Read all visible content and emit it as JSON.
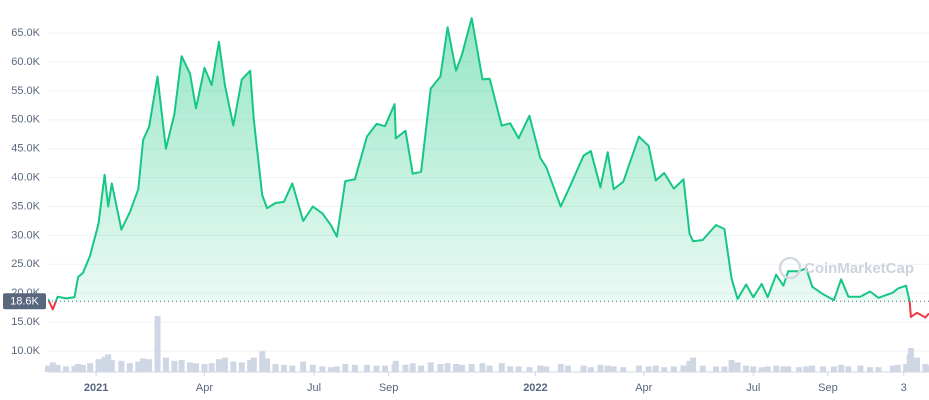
{
  "chart_data": {
    "type": "line",
    "color": "#16c784",
    "below_color": "#ea3943",
    "volume_color": "#cfd6e4",
    "grid": true,
    "watermark": "CoinMarketCap",
    "reference": {
      "value": 18600,
      "label": "18.6K"
    },
    "ylim": [
      6000,
      68500
    ],
    "yticks": [
      {
        "value": 10000,
        "label": "10.0K"
      },
      {
        "value": 15000,
        "label": "15.0K"
      },
      {
        "value": 20000,
        "label": "20.0K"
      },
      {
        "value": 25000,
        "label": "25.0K"
      },
      {
        "value": 30000,
        "label": "30.0K"
      },
      {
        "value": 35000,
        "label": "35.0K"
      },
      {
        "value": 40000,
        "label": "40.0K"
      },
      {
        "value": 45000,
        "label": "45.0K"
      },
      {
        "value": 50000,
        "label": "50.0K"
      },
      {
        "value": 55000,
        "label": "55.0K"
      },
      {
        "value": 60000,
        "label": "60.0K"
      },
      {
        "value": 65000,
        "label": "65.0K"
      }
    ],
    "xlim": [
      "2020-11-22",
      "2022-11-24"
    ],
    "xticks": [
      {
        "value": "2021-01-01",
        "label": "2021"
      },
      {
        "value": "2021-04-01",
        "label": "Apr"
      },
      {
        "value": "2021-07-01",
        "label": "Jul"
      },
      {
        "value": "2021-09-01",
        "label": "Sep"
      },
      {
        "value": "2022-01-01",
        "label": "2022"
      },
      {
        "value": "2022-04-01",
        "label": "Apr"
      },
      {
        "value": "2022-07-01",
        "label": "Jul"
      },
      {
        "value": "2022-09-01",
        "label": "Sep"
      },
      {
        "value": "2022-11-03",
        "label": "3"
      }
    ],
    "x": [
      "2020-11-22",
      "2020-11-26",
      "2020-11-30",
      "2020-12-07",
      "2020-12-14",
      "2020-12-17",
      "2020-12-21",
      "2020-12-27",
      "2021-01-03",
      "2021-01-08",
      "2021-01-11",
      "2021-01-14",
      "2021-01-22",
      "2021-01-29",
      "2021-02-05",
      "2021-02-09",
      "2021-02-14",
      "2021-02-21",
      "2021-02-28",
      "2021-03-07",
      "2021-03-13",
      "2021-03-20",
      "2021-03-25",
      "2021-04-01",
      "2021-04-07",
      "2021-04-13",
      "2021-04-18",
      "2021-04-25",
      "2021-05-02",
      "2021-05-09",
      "2021-05-12",
      "2021-05-19",
      "2021-05-23",
      "2021-05-30",
      "2021-06-06",
      "2021-06-13",
      "2021-06-22",
      "2021-06-30",
      "2021-07-08",
      "2021-07-15",
      "2021-07-20",
      "2021-07-27",
      "2021-08-04",
      "2021-08-14",
      "2021-08-22",
      "2021-08-29",
      "2021-09-06",
      "2021-09-07",
      "2021-09-15",
      "2021-09-21",
      "2021-09-28",
      "2021-10-06",
      "2021-10-14",
      "2021-10-20",
      "2021-10-27",
      "2021-11-01",
      "2021-11-09",
      "2021-11-18",
      "2021-11-24",
      "2021-12-04",
      "2021-12-11",
      "2021-12-18",
      "2021-12-27",
      "2022-01-05",
      "2022-01-10",
      "2022-01-22",
      "2022-01-28",
      "2022-02-10",
      "2022-02-16",
      "2022-02-24",
      "2022-03-02",
      "2022-03-07",
      "2022-03-15",
      "2022-03-28",
      "2022-04-05",
      "2022-04-11",
      "2022-04-18",
      "2022-04-26",
      "2022-05-04",
      "2022-05-09",
      "2022-05-12",
      "2022-05-20",
      "2022-05-31",
      "2022-06-07",
      "2022-06-13",
      "2022-06-18",
      "2022-06-25",
      "2022-07-01",
      "2022-07-08",
      "2022-07-13",
      "2022-07-20",
      "2022-07-26",
      "2022-07-30",
      "2022-08-08",
      "2022-08-14",
      "2022-08-19",
      "2022-08-28",
      "2022-09-06",
      "2022-09-12",
      "2022-09-18",
      "2022-09-28",
      "2022-10-06",
      "2022-10-13",
      "2022-10-25",
      "2022-10-29",
      "2022-11-05",
      "2022-11-08",
      "2022-11-09",
      "2022-11-14",
      "2022-11-21",
      "2022-11-24"
    ],
    "values": [
      19000,
      17200,
      19400,
      19100,
      19300,
      22800,
      23500,
      26500,
      32000,
      40500,
      35000,
      39000,
      31000,
      34000,
      38000,
      46500,
      48800,
      57500,
      45000,
      51000,
      61000,
      58000,
      52000,
      59000,
      56000,
      63500,
      56000,
      49000,
      57000,
      58500,
      50000,
      37000,
      34700,
      35600,
      35800,
      39000,
      32500,
      35000,
      33800,
      31800,
      29800,
      39400,
      39700,
      47100,
      49300,
      48900,
      52700,
      46800,
      48100,
      40700,
      41000,
      55400,
      57500,
      66000,
      58500,
      61300,
      67600,
      57000,
      57100,
      49000,
      49400,
      46800,
      50700,
      43400,
      41800,
      35000,
      37700,
      43800,
      44600,
      38300,
      44400,
      38000,
      39300,
      47100,
      45500,
      39500,
      40800,
      38100,
      39700,
      30300,
      29000,
      29200,
      31800,
      31100,
      22500,
      19000,
      21500,
      19300,
      21600,
      19300,
      23200,
      21300,
      23800,
      23800,
      24300,
      21100,
      19800,
      18800,
      22400,
      19400,
      19400,
      20300,
      19200,
      20100,
      20800,
      21300,
      18500,
      15900,
      16600,
      15800,
      16500
    ],
    "volume": [
      40,
      60,
      45,
      35,
      38,
      50,
      45,
      55,
      80,
      95,
      110,
      75,
      70,
      55,
      65,
      85,
      80,
      350,
      90,
      70,
      75,
      60,
      55,
      50,
      55,
      80,
      90,
      65,
      60,
      75,
      90,
      130,
      85,
      50,
      45,
      40,
      65,
      45,
      35,
      30,
      35,
      50,
      45,
      45,
      40,
      40,
      50,
      70,
      45,
      55,
      40,
      60,
      50,
      55,
      50,
      45,
      50,
      55,
      40,
      55,
      35,
      35,
      30,
      40,
      35,
      50,
      40,
      40,
      30,
      45,
      40,
      35,
      30,
      40,
      35,
      40,
      30,
      35,
      40,
      70,
      90,
      40,
      35,
      35,
      75,
      60,
      40,
      35,
      30,
      35,
      40,
      35,
      35,
      30,
      35,
      40,
      35,
      35,
      45,
      35,
      40,
      30,
      30,
      40,
      45,
      50,
      110,
      150,
      90,
      50,
      40
    ]
  }
}
